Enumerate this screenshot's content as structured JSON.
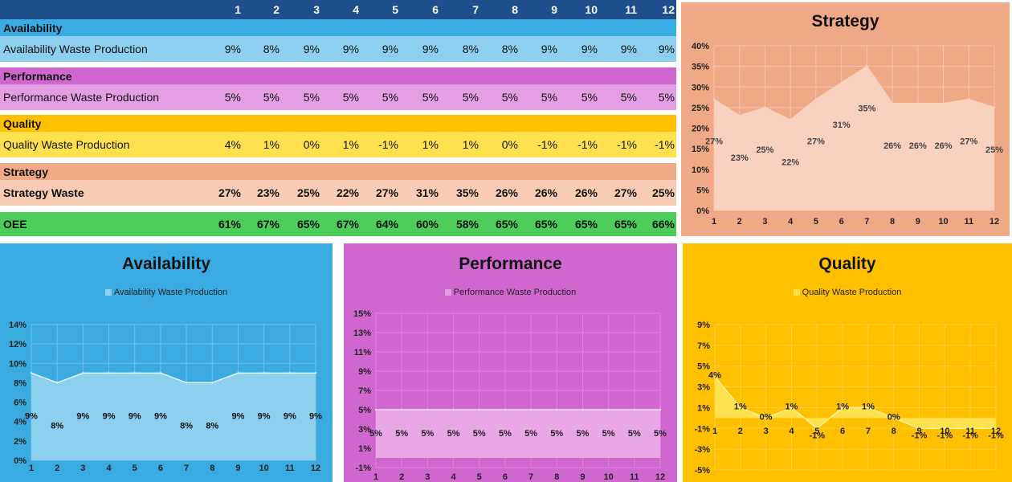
{
  "table": {
    "columns": [
      "1",
      "2",
      "3",
      "4",
      "5",
      "6",
      "7",
      "8",
      "9",
      "10",
      "11",
      "12"
    ],
    "availability_header": "Availability",
    "availability_label": "Availability Waste Production",
    "availability_values": [
      "9%",
      "8%",
      "9%",
      "9%",
      "9%",
      "9%",
      "8%",
      "8%",
      "9%",
      "9%",
      "9%",
      "9%"
    ],
    "performance_header": "Performance",
    "performance_label": "Performance  Waste Production",
    "performance_values": [
      "5%",
      "5%",
      "5%",
      "5%",
      "5%",
      "5%",
      "5%",
      "5%",
      "5%",
      "5%",
      "5%",
      "5%"
    ],
    "quality_header": "Quality",
    "quality_label": "Quality Waste Production",
    "quality_values": [
      "4%",
      "1%",
      "0%",
      "1%",
      "-1%",
      "1%",
      "1%",
      "0%",
      "-1%",
      "-1%",
      "-1%",
      "-1%"
    ],
    "strategy_header": "Strategy",
    "strategy_label": "Strategy Waste",
    "strategy_values": [
      "27%",
      "23%",
      "25%",
      "22%",
      "27%",
      "31%",
      "35%",
      "26%",
      "26%",
      "26%",
      "27%",
      "25%"
    ],
    "oee_label": "OEE",
    "oee_values": [
      "61%",
      "67%",
      "65%",
      "67%",
      "64%",
      "60%",
      "58%",
      "65%",
      "65%",
      "65%",
      "65%",
      "66%"
    ]
  },
  "colors": {
    "header_blue": "#1f4e8c",
    "availability_dark": "#3aabe0",
    "availability_light": "#8dcfee",
    "performance_dark": "#d067cf",
    "performance_light": "#e49ee3",
    "quality_dark": "#ffc000",
    "quality_light": "#ffe14d",
    "strategy_dark": "#f0a987",
    "strategy_light": "#f8cbb4",
    "oee_green": "#4ccd5a"
  },
  "chart_data": [
    {
      "id": "strategy",
      "type": "area",
      "title": "Strategy",
      "categories": [
        "1",
        "2",
        "3",
        "4",
        "5",
        "6",
        "7",
        "8",
        "9",
        "10",
        "11",
        "12"
      ],
      "series": [
        {
          "name": "Strategy Waste",
          "values": [
            27,
            23,
            25,
            22,
            27,
            31,
            35,
            26,
            26,
            26,
            27,
            25
          ]
        }
      ],
      "data_labels": [
        "27%",
        "23%",
        "25%",
        "22%",
        "27%",
        "31%",
        "35%",
        "26%",
        "26%",
        "26%",
        "27%",
        "25%"
      ],
      "ylim": [
        0,
        40
      ],
      "yticks": [
        "0%",
        "5%",
        "10%",
        "15%",
        "20%",
        "25%",
        "30%",
        "35%",
        "40%"
      ],
      "legend": "",
      "grid": true
    },
    {
      "id": "availability",
      "type": "area",
      "title": "Availability",
      "categories": [
        "1",
        "2",
        "3",
        "4",
        "5",
        "6",
        "7",
        "8",
        "9",
        "10",
        "11",
        "12"
      ],
      "series": [
        {
          "name": "Availability Waste Production",
          "values": [
            9,
            8,
            9,
            9,
            9,
            9,
            8,
            8,
            9,
            9,
            9,
            9
          ]
        }
      ],
      "data_labels": [
        "9%",
        "8%",
        "9%",
        "9%",
        "9%",
        "9%",
        "8%",
        "8%",
        "9%",
        "9%",
        "9%",
        "9%"
      ],
      "ylim": [
        0,
        14
      ],
      "yticks": [
        "0%",
        "2%",
        "4%",
        "6%",
        "8%",
        "10%",
        "12%",
        "14%"
      ],
      "legend": "Availability Waste Production",
      "grid": true
    },
    {
      "id": "performance",
      "type": "area",
      "title": "Performance",
      "categories": [
        "1",
        "2",
        "3",
        "4",
        "5",
        "6",
        "7",
        "8",
        "9",
        "10",
        "11",
        "12"
      ],
      "series": [
        {
          "name": "Performance  Waste Production",
          "values": [
            5,
            5,
            5,
            5,
            5,
            5,
            5,
            5,
            5,
            5,
            5,
            5
          ]
        }
      ],
      "data_labels": [
        "5%",
        "5%",
        "5%",
        "5%",
        "5%",
        "5%",
        "5%",
        "5%",
        "5%",
        "5%",
        "5%",
        "5%"
      ],
      "ylim": [
        -1,
        15
      ],
      "yticks": [
        "-1%",
        "1%",
        "3%",
        "5%",
        "7%",
        "9%",
        "11%",
        "13%",
        "15%"
      ],
      "legend": "Performance  Waste Production",
      "grid": true
    },
    {
      "id": "quality",
      "type": "area",
      "title": "Quality",
      "categories": [
        "1",
        "2",
        "3",
        "4",
        "5",
        "6",
        "7",
        "8",
        "9",
        "10",
        "11",
        "12"
      ],
      "series": [
        {
          "name": "Quality Waste Production",
          "values": [
            4,
            1,
            0,
            1,
            -1,
            1,
            1,
            0,
            -1,
            -1,
            -1,
            -1
          ]
        }
      ],
      "data_labels": [
        "4%",
        "1%",
        "0%",
        "1%",
        "-1%",
        "1%",
        "1%",
        "0%",
        "-1%",
        "-1%",
        "-1%",
        "-1%"
      ],
      "ylim": [
        -5,
        9
      ],
      "yticks": [
        "-5%",
        "-3%",
        "-1%",
        "1%",
        "3%",
        "5%",
        "7%",
        "9%"
      ],
      "legend": "Quality Waste Production",
      "grid": true
    }
  ]
}
